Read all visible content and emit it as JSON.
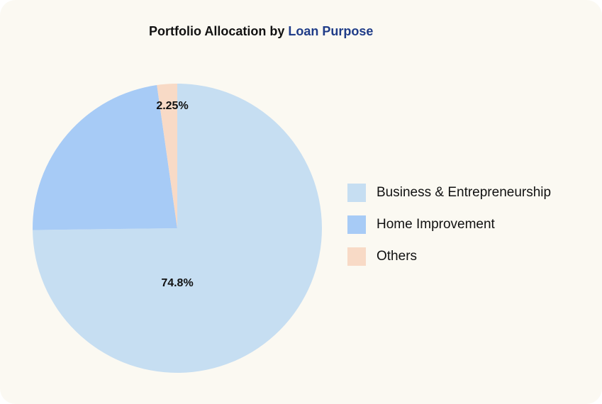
{
  "chart_data": {
    "type": "pie",
    "title": "Portfolio Allocation by",
    "title_highlight": "Loan Purpose",
    "categories": [
      "Business & Entrepreneurship",
      "Home Improvement",
      "Others"
    ],
    "values": [
      74.8,
      22.95,
      2.25
    ],
    "value_labels": [
      "74.8%",
      null,
      "2.25%"
    ],
    "colors": [
      "#c6def2",
      "#a7cbf6",
      "#f8dac6"
    ],
    "legend": "right"
  }
}
